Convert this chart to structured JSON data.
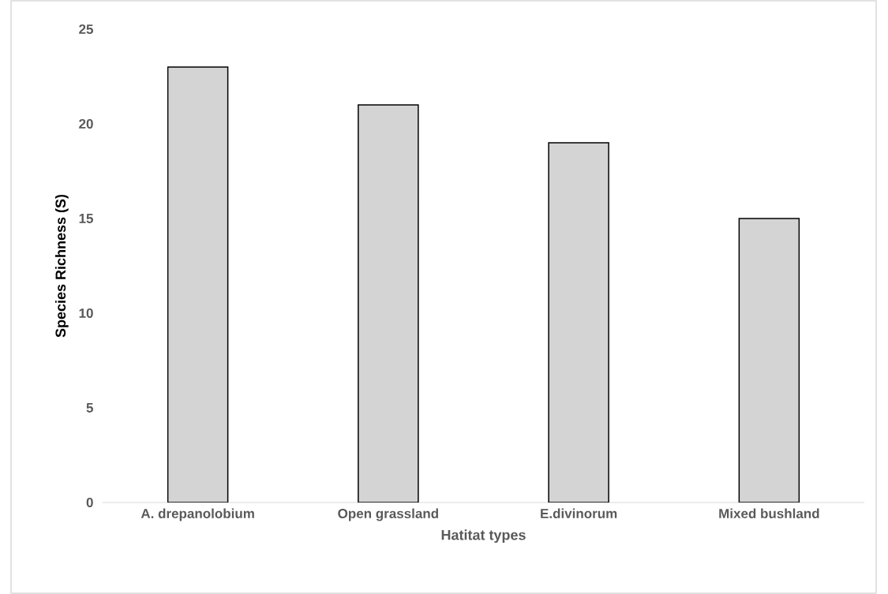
{
  "chart_data": {
    "type": "bar",
    "xlabel": "Hatitat types",
    "ylabel": "Species Richness (S)",
    "categories": [
      "A. drepanolobium",
      "Open grassland",
      "E.divinorum",
      "Mixed bushland"
    ],
    "values": [
      23,
      21,
      19,
      15
    ],
    "color": "#d4d4d4",
    "ylim": [
      0,
      25
    ],
    "yticks": [
      0,
      5,
      10,
      15,
      20,
      25
    ],
    "grid": false
  }
}
